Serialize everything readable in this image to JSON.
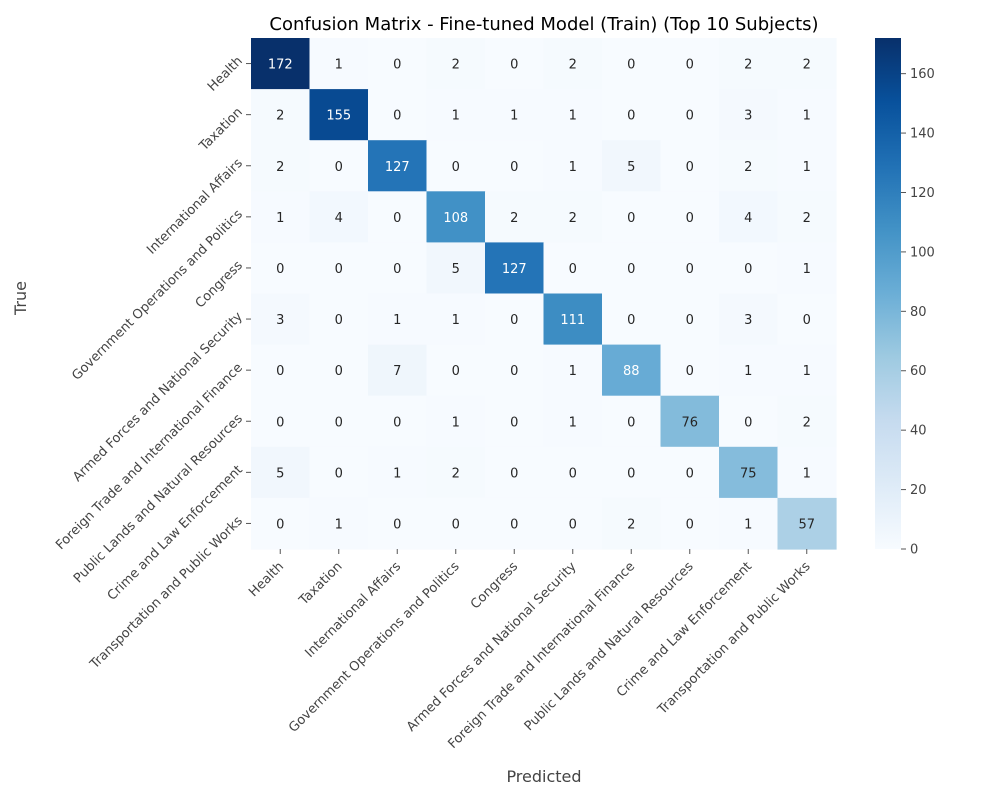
{
  "chart_data": {
    "type": "heatmap",
    "title": "Confusion Matrix - Fine-tuned Model (Train) (Top 10 Subjects)",
    "xlabel": "Predicted",
    "ylabel": "True",
    "x_categories": [
      "Health",
      "Taxation",
      "International Affairs",
      "Government Operations and Politics",
      "Congress",
      "Armed Forces and National Security",
      "Foreign Trade and International Finance",
      "Public Lands and Natural Resources",
      "Crime and Law Enforcement",
      "Transportation and Public Works"
    ],
    "y_categories": [
      "Health",
      "Taxation",
      "International Affairs",
      "Government Operations and Politics",
      "Congress",
      "Armed Forces and National Security",
      "Foreign Trade and International Finance",
      "Public Lands and Natural Resources",
      "Crime and Law Enforcement",
      "Transportation and Public Works"
    ],
    "values": [
      [
        172,
        1,
        0,
        2,
        0,
        2,
        0,
        0,
        2,
        2
      ],
      [
        2,
        155,
        0,
        1,
        1,
        1,
        0,
        0,
        3,
        1
      ],
      [
        2,
        0,
        127,
        0,
        0,
        1,
        5,
        0,
        2,
        1
      ],
      [
        1,
        4,
        0,
        108,
        2,
        2,
        0,
        0,
        4,
        2
      ],
      [
        0,
        0,
        0,
        5,
        127,
        0,
        0,
        0,
        0,
        1
      ],
      [
        3,
        0,
        1,
        1,
        0,
        111,
        0,
        0,
        3,
        0
      ],
      [
        0,
        0,
        7,
        0,
        0,
        1,
        88,
        0,
        1,
        1
      ],
      [
        0,
        0,
        0,
        1,
        0,
        1,
        0,
        76,
        0,
        2
      ],
      [
        5,
        0,
        1,
        2,
        0,
        0,
        0,
        0,
        75,
        1
      ],
      [
        0,
        1,
        0,
        0,
        0,
        0,
        2,
        0,
        1,
        57
      ]
    ],
    "colormap": "Blues",
    "vmin": 0,
    "vmax": 172,
    "colorbar_ticks": [
      0,
      20,
      40,
      60,
      80,
      100,
      120,
      140,
      160
    ],
    "grid": false
  }
}
